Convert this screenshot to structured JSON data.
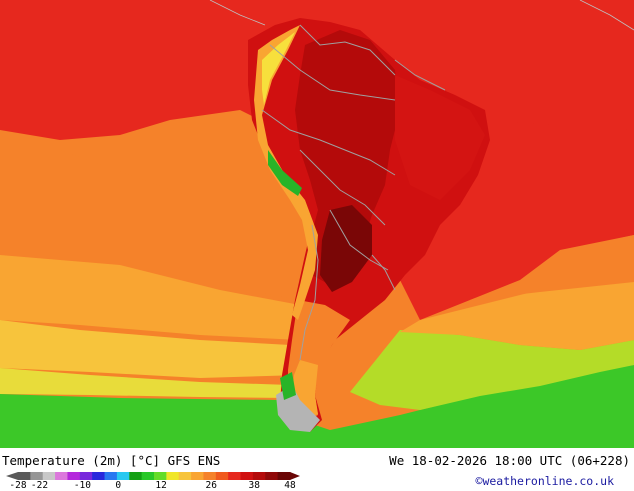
{
  "map": {
    "title": "Temperature (2m) [°C] GFS ENS",
    "valid_time": "We 18-02-2026 18:00 UTC (06+228)",
    "credit": "©weatheronline.co.uk",
    "region": "South America",
    "colors": {
      "sea_hot": "#e6281e",
      "sea_warm": "#f5822a",
      "sea_mild": "#f9a532",
      "sea_cool": "#f7c43c",
      "sea_cold": "#e8dc3a",
      "sea_yellowgreen": "#b4dc28",
      "sea_green": "#3cc828",
      "land_hot": "#d01010",
      "land_very_hot": "#9a0a0a",
      "andes_green": "#28b428",
      "border_gray": "#a0a0a0"
    }
  },
  "legend": {
    "ticks": [
      {
        "label": "-28",
        "value": -28
      },
      {
        "label": "-22",
        "value": -22
      },
      {
        "label": "-10",
        "value": -10
      },
      {
        "label": "0",
        "value": 0
      },
      {
        "label": "12",
        "value": 12
      },
      {
        "label": "26",
        "value": 26
      },
      {
        "label": "38",
        "value": 38
      },
      {
        "label": "48",
        "value": 48
      }
    ],
    "colors": [
      "#5a5a5a",
      "#969696",
      "#c8c8c8",
      "#dc78dc",
      "#b428dc",
      "#7828dc",
      "#2828dc",
      "#2878f0",
      "#28c8f0",
      "#14a014",
      "#28c828",
      "#64dc28",
      "#f0e628",
      "#f7c43c",
      "#f9a532",
      "#f5822a",
      "#f05a1e",
      "#e6281e",
      "#d01010",
      "#b40a0a",
      "#900808",
      "#6a0505"
    ]
  }
}
